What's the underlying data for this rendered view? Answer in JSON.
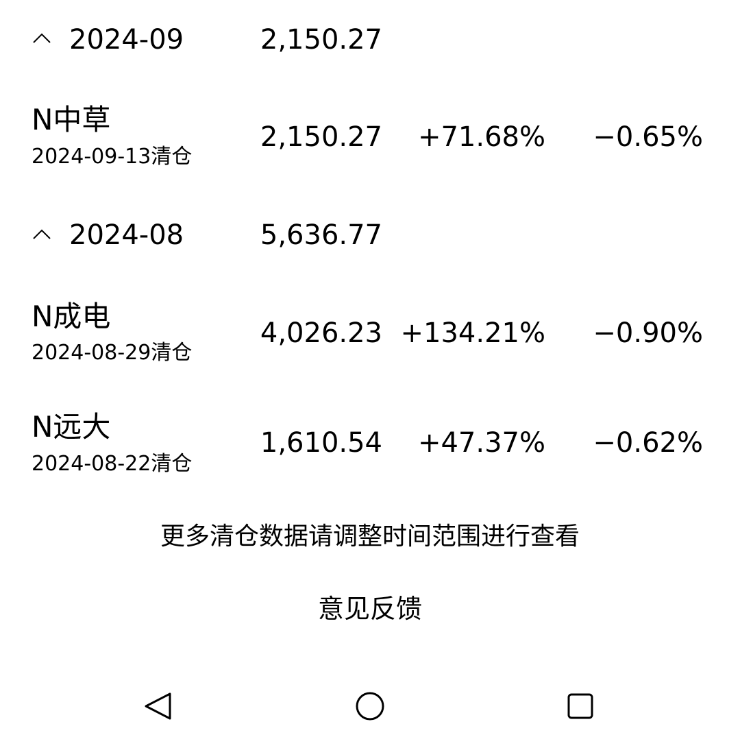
{
  "groups": [
    {
      "month": "2024-09",
      "total": "2,150.27",
      "items": [
        {
          "name": "N中草",
          "date": "2024-09-13清仓",
          "amount": "2,150.27",
          "return": "+71.68%",
          "change": "−0.65%"
        }
      ]
    },
    {
      "month": "2024-08",
      "total": "5,636.77",
      "items": [
        {
          "name": "N成电",
          "date": "2024-08-29清仓",
          "amount": "4,026.23",
          "return": "+134.21%",
          "change": "−0.90%"
        },
        {
          "name": "N远大",
          "date": "2024-08-22清仓",
          "amount": "1,610.54",
          "return": "+47.37%",
          "change": "−0.62%"
        }
      ]
    }
  ],
  "footer": {
    "note": "更多清仓数据请调整时间范围进行查看",
    "feedback": "意见反馈"
  },
  "nav": {
    "back_icon": "back-triangle-icon",
    "home_icon": "home-circle-icon",
    "recents_icon": "recents-square-icon"
  }
}
